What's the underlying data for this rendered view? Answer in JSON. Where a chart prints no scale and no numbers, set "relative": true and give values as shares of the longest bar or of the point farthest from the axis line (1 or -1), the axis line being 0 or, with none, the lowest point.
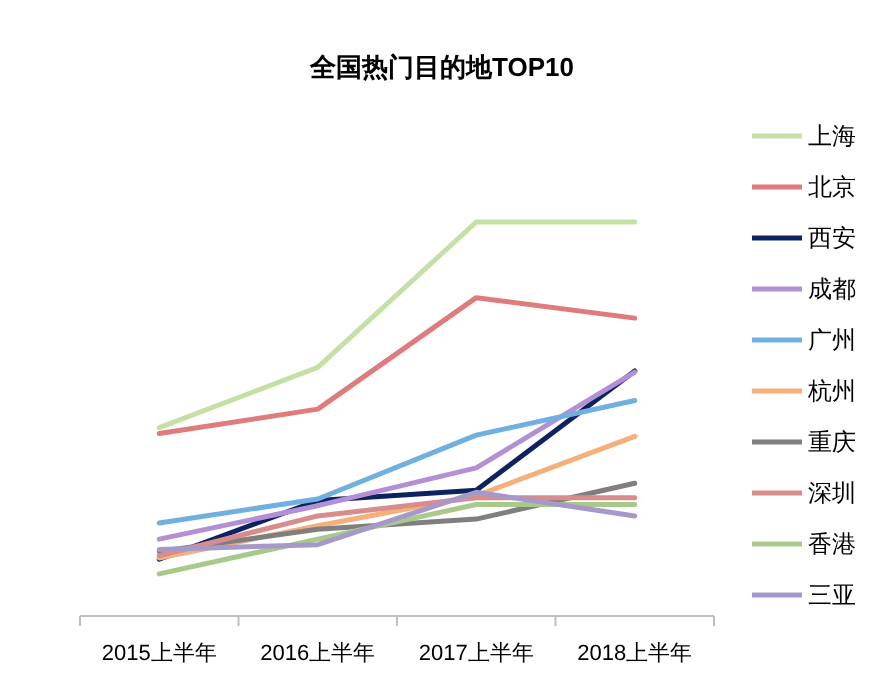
{
  "chart_data": {
    "type": "line",
    "title": "全国热门目的地TOP10",
    "relative": true,
    "legend": "right",
    "marker": "none",
    "line_style": "solid",
    "categories": [
      "2015上半年",
      "2016上半年",
      "2017上半年",
      "2018上半年"
    ],
    "series": [
      {
        "name": "上海",
        "color": "#c5e0a5",
        "values": [
          0.478,
          0.631,
          1,
          1
        ]
      },
      {
        "name": "北京",
        "color": "#e07b7b",
        "values": [
          0.463,
          0.525,
          0.808,
          0.756
        ]
      },
      {
        "name": "西安",
        "color": "#0d2260",
        "values": [
          0.144,
          0.293,
          0.319,
          0.622
        ]
      },
      {
        "name": "成都",
        "color": "#b38fd6",
        "values": [
          0.195,
          0.28,
          0.376,
          0.619
        ]
      },
      {
        "name": "广州",
        "color": "#6fb0e0",
        "values": [
          0.236,
          0.297,
          0.459,
          0.547
        ]
      },
      {
        "name": "杭州",
        "color": "#f5b07a",
        "values": [
          0.147,
          0.229,
          0.305,
          0.456
        ]
      },
      {
        "name": "重庆",
        "color": "#7f7f7f",
        "values": [
          0.164,
          0.22,
          0.246,
          0.337
        ]
      },
      {
        "name": "深圳",
        "color": "#d98c8c",
        "values": [
          0.153,
          0.254,
          0.3,
          0.3
        ]
      },
      {
        "name": "香港",
        "color": "#a9c98a",
        "values": [
          0.107,
          0.195,
          0.283,
          0.283
        ]
      },
      {
        "name": "三亚",
        "color": "#a699c9",
        "values": [
          0.169,
          0.181,
          0.314,
          0.254
        ]
      }
    ]
  }
}
